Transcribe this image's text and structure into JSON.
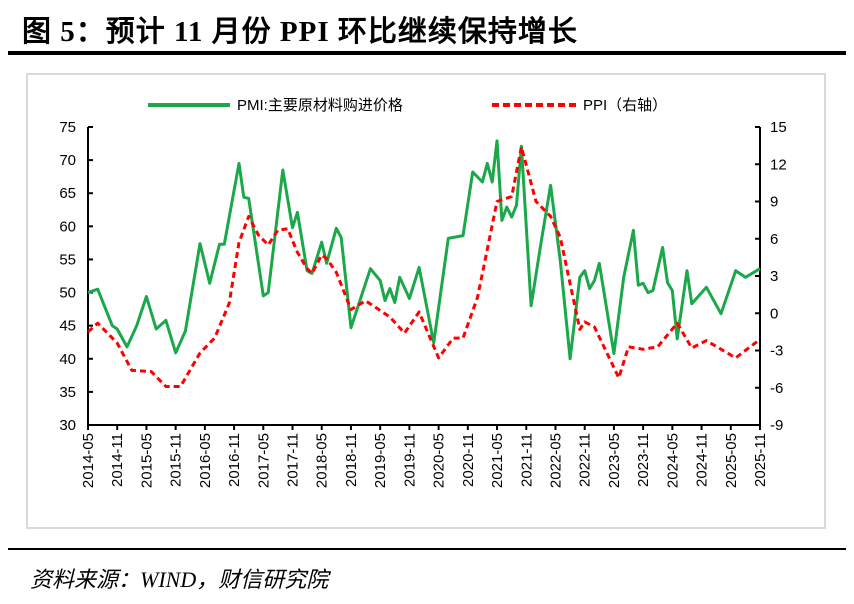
{
  "title": "图 5：预计 11 月份 PPI 环比继续保持增长",
  "source": "资料来源：WIND，财信研究院",
  "chart_data": {
    "type": "line",
    "title": "",
    "legend_position": "top",
    "grid": false,
    "x_ticks": [
      "2014-05",
      "2014-11",
      "2015-05",
      "2015-11",
      "2016-05",
      "2016-11",
      "2017-05",
      "2017-11",
      "2018-05",
      "2018-11",
      "2019-05",
      "2019-11",
      "2020-05",
      "2020-11",
      "2021-05",
      "2021-11",
      "2022-05",
      "2022-11",
      "2023-05",
      "2023-11",
      "2024-05",
      "2024-11",
      "2025-05",
      "2025-11"
    ],
    "y_left": {
      "range": [
        30,
        75
      ],
      "ticks": [
        30,
        35,
        40,
        45,
        50,
        55,
        60,
        65,
        70,
        75
      ]
    },
    "y_right": {
      "range": [
        -9,
        15
      ],
      "ticks": [
        -9,
        -6,
        -3,
        0,
        3,
        6,
        9,
        12,
        15
      ]
    },
    "series": [
      {
        "name": "PMI:主要原材料购进价格",
        "axis": "left",
        "color": "#1aa84a",
        "style": "solid",
        "points": [
          [
            "2014-05",
            50
          ],
          [
            "2014-07",
            50.5
          ],
          [
            "2014-10",
            45
          ],
          [
            "2014-11",
            44.5
          ],
          [
            "2015-01",
            41.8
          ],
          [
            "2015-03",
            45
          ],
          [
            "2015-05",
            49.4
          ],
          [
            "2015-07",
            44.5
          ],
          [
            "2015-09",
            45.8
          ],
          [
            "2015-11",
            40.9
          ],
          [
            "2016-01",
            44.2
          ],
          [
            "2016-04",
            57.4
          ],
          [
            "2016-06",
            51.4
          ],
          [
            "2016-08",
            57.3
          ],
          [
            "2016-09",
            57.3
          ],
          [
            "2016-12",
            69.5
          ],
          [
            "2017-01",
            64.4
          ],
          [
            "2017-02",
            64.2
          ],
          [
            "2017-05",
            49.5
          ],
          [
            "2017-06",
            50
          ],
          [
            "2017-09",
            68.5
          ],
          [
            "2017-11",
            59.8
          ],
          [
            "2017-12",
            62.1
          ],
          [
            "2018-02",
            53.3
          ],
          [
            "2018-03",
            52.9
          ],
          [
            "2018-05",
            57.6
          ],
          [
            "2018-06",
            54.4
          ],
          [
            "2018-08",
            59.7
          ],
          [
            "2018-09",
            58.3
          ],
          [
            "2018-11",
            44.7
          ],
          [
            "2019-03",
            53.6
          ],
          [
            "2019-05",
            51.8
          ],
          [
            "2019-06",
            48.8
          ],
          [
            "2019-07",
            50.6
          ],
          [
            "2019-08",
            48.5
          ],
          [
            "2019-09",
            52.3
          ],
          [
            "2019-11",
            49.1
          ],
          [
            "2020-01",
            53.8
          ],
          [
            "2020-04",
            42.4
          ],
          [
            "2020-07",
            58.2
          ],
          [
            "2020-10",
            58.6
          ],
          [
            "2020-12",
            68.2
          ],
          [
            "2021-02",
            66.7
          ],
          [
            "2021-03",
            69.5
          ],
          [
            "2021-04",
            66.7
          ],
          [
            "2021-05",
            72.9
          ],
          [
            "2021-06",
            60.9
          ],
          [
            "2021-07",
            62.9
          ],
          [
            "2021-08",
            61.4
          ],
          [
            "2021-09",
            63.2
          ],
          [
            "2021-10",
            72.1
          ],
          [
            "2021-12",
            48
          ],
          [
            "2022-02",
            57.4
          ],
          [
            "2022-04",
            66.2
          ],
          [
            "2022-06",
            54.8
          ],
          [
            "2022-08",
            40
          ],
          [
            "2022-10",
            52.3
          ],
          [
            "2022-11",
            53.3
          ],
          [
            "2022-12",
            50.6
          ],
          [
            "2023-01",
            51.8
          ],
          [
            "2023-02",
            54.4
          ],
          [
            "2023-05",
            40.8
          ],
          [
            "2023-07",
            52.3
          ],
          [
            "2023-09",
            59.4
          ],
          [
            "2023-10",
            51.1
          ],
          [
            "2023-11",
            51.4
          ],
          [
            "2023-12",
            50
          ],
          [
            "2024-01",
            50.3
          ],
          [
            "2024-03",
            56.8
          ],
          [
            "2024-04",
            51.5
          ],
          [
            "2024-05",
            50.3
          ],
          [
            "2024-06",
            43
          ],
          [
            "2024-08",
            53.3
          ],
          [
            "2024-09",
            48.3
          ],
          [
            "2024-12",
            50.8
          ],
          [
            "2025-03",
            46.8
          ],
          [
            "2025-06",
            53.3
          ],
          [
            "2025-08",
            52.3
          ],
          [
            "2025-11",
            53.6
          ]
        ]
      },
      {
        "name": "PPI（右轴）",
        "axis": "right",
        "color": "#ff0000",
        "style": "dashed",
        "points": [
          [
            "2014-05",
            -1.5
          ],
          [
            "2014-07",
            -0.8
          ],
          [
            "2014-11",
            -2.4
          ],
          [
            "2015-02",
            -4.6
          ],
          [
            "2015-06",
            -4.7
          ],
          [
            "2015-09",
            -5.9
          ],
          [
            "2015-12",
            -5.9
          ],
          [
            "2016-04",
            -3.2
          ],
          [
            "2016-07",
            -2
          ],
          [
            "2016-10",
            0.8
          ],
          [
            "2016-12",
            5.7
          ],
          [
            "2017-02",
            7.8
          ],
          [
            "2017-04",
            6.3
          ],
          [
            "2017-06",
            5.5
          ],
          [
            "2017-08",
            6.7
          ],
          [
            "2017-10",
            6.8
          ],
          [
            "2017-12",
            4.9
          ],
          [
            "2018-02",
            3.6
          ],
          [
            "2018-03",
            3.2
          ],
          [
            "2018-05",
            4.7
          ],
          [
            "2018-06",
            4.4
          ],
          [
            "2018-08",
            3.3
          ],
          [
            "2018-11",
            0.3
          ],
          [
            "2019-02",
            1
          ],
          [
            "2019-07",
            -0.3
          ],
          [
            "2019-10",
            -1.6
          ],
          [
            "2020-01",
            0.1
          ],
          [
            "2020-05",
            -3.6
          ],
          [
            "2020-08",
            -2
          ],
          [
            "2020-10",
            -2
          ],
          [
            "2021-01",
            1.3
          ],
          [
            "2021-05",
            9
          ],
          [
            "2021-08",
            9.4
          ],
          [
            "2021-10",
            13.4
          ],
          [
            "2022-01",
            9
          ],
          [
            "2022-04",
            7.8
          ],
          [
            "2022-06",
            6.1
          ],
          [
            "2022-10",
            -1.3
          ],
          [
            "2022-11",
            -0.7
          ],
          [
            "2023-01",
            -1.1
          ],
          [
            "2023-06",
            -5.2
          ],
          [
            "2023-08",
            -2.7
          ],
          [
            "2023-11",
            -2.9
          ],
          [
            "2024-02",
            -2.7
          ],
          [
            "2024-06",
            -0.8
          ],
          [
            "2024-09",
            -2.8
          ],
          [
            "2024-12",
            -2.2
          ],
          [
            "2025-06",
            -3.6
          ],
          [
            "2025-11",
            -2.1
          ]
        ]
      }
    ]
  }
}
